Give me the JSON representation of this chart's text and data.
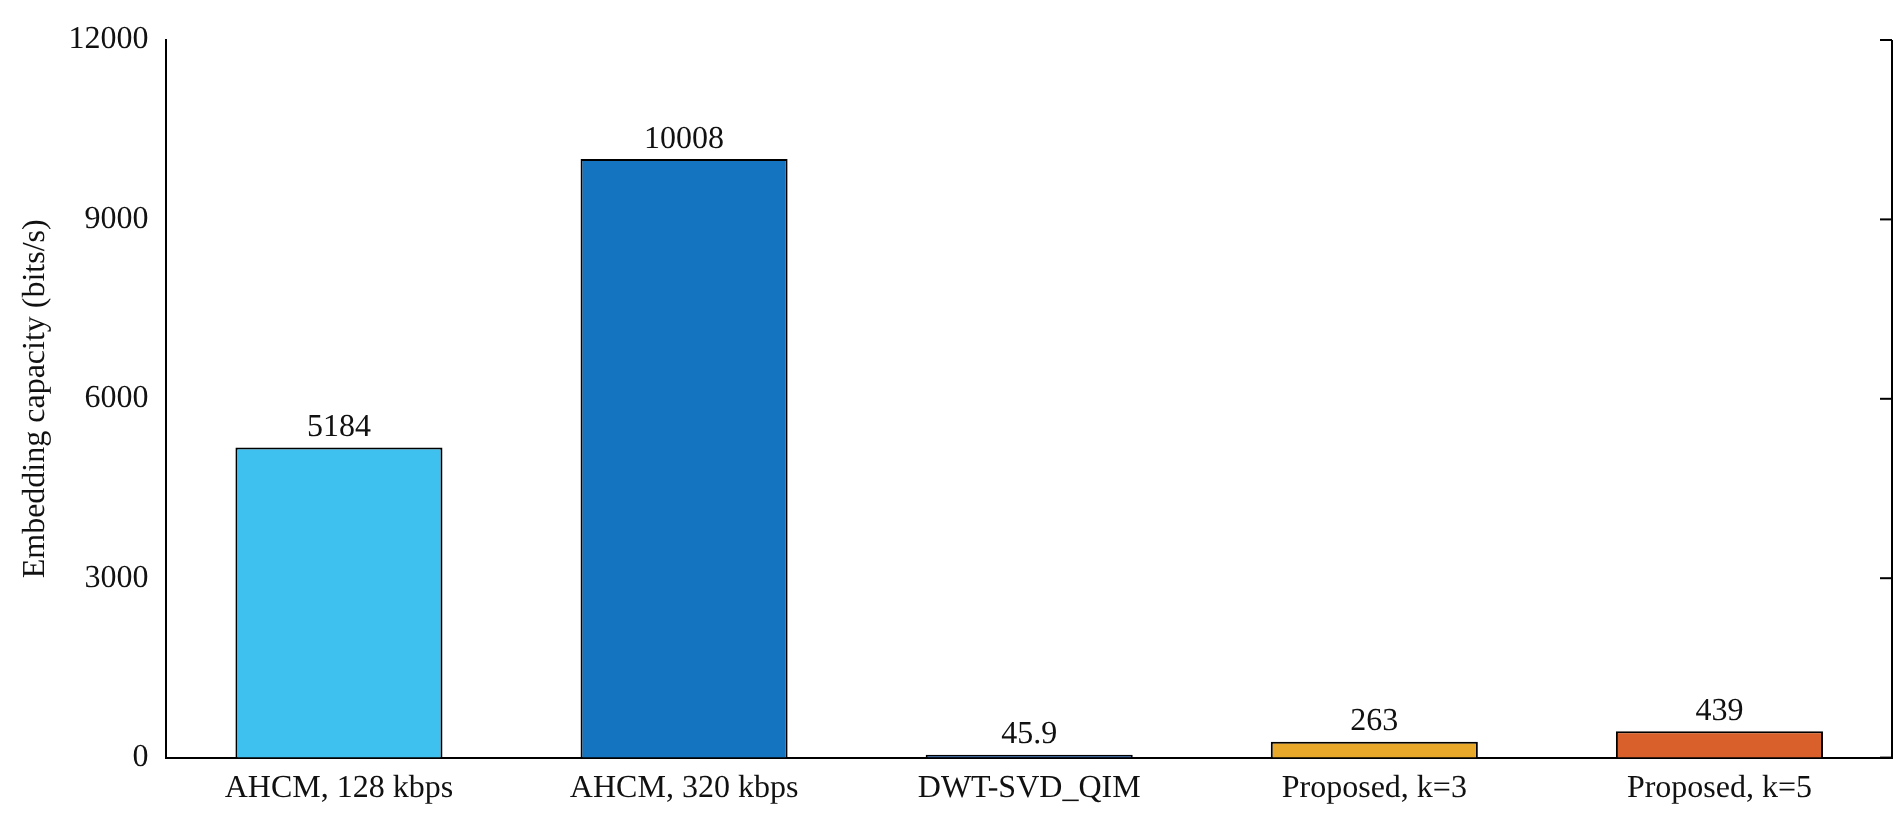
{
  "chart_data": {
    "type": "bar",
    "ylabel": "Embedding capacity (bits/s)",
    "categories": [
      "AHCM, 128 kbps",
      "AHCM, 320 kbps",
      "DWT-SVD_QIM",
      "Proposed, k=3",
      "Proposed, k=5"
    ],
    "values": [
      5184,
      10008,
      45.9,
      263,
      439
    ],
    "colors": [
      "#3ec1ef",
      "#1574bf",
      "#1a4a8a",
      "#e8a82a",
      "#d9602a"
    ],
    "ylim": [
      0,
      12000
    ],
    "yticks": [
      0,
      3000,
      6000,
      9000,
      12000
    ],
    "grid": false,
    "legend": false,
    "data_labels": true
  }
}
